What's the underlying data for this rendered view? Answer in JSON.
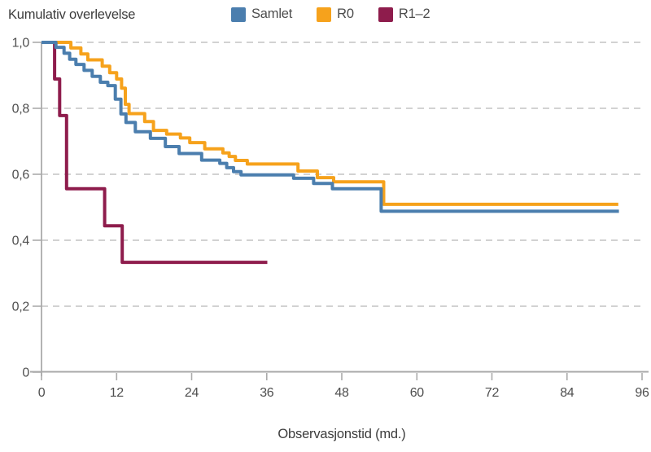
{
  "header": {
    "title": "Kumulativ overlevelse"
  },
  "legend": {
    "items": [
      {
        "label": "Samlet",
        "color": "#4B7EAE"
      },
      {
        "label": "R0",
        "color": "#F6A21C"
      },
      {
        "label": "R1–2",
        "color": "#8E1C4C"
      }
    ]
  },
  "axes": {
    "x": {
      "label": "Observasjonstid (md.)",
      "tick_labels": [
        "0",
        "12",
        "24",
        "36",
        "48",
        "60",
        "72",
        "84",
        "96"
      ],
      "tick_values": [
        0,
        12,
        24,
        36,
        48,
        60,
        72,
        84,
        96
      ],
      "range": [
        0,
        96
      ]
    },
    "y": {
      "tick_labels": [
        "1,0",
        "0,8",
        "0,6",
        "0,4",
        "0,2",
        "0"
      ],
      "tick_values": [
        1.0,
        0.8,
        0.6,
        0.4,
        0.2,
        0
      ],
      "grid_values": [
        1.0,
        0.8,
        0.6,
        0.4,
        0.2
      ],
      "range": [
        0,
        1.0
      ]
    }
  },
  "chart_data": {
    "type": "line",
    "subtype": "kaplan-meier-step",
    "title": "Kumulativ overlevelse",
    "xlabel": "Observasjonstid (md.)",
    "ylabel": "",
    "x_range": [
      0,
      96
    ],
    "y_range": [
      0,
      1.0
    ],
    "grid": "horizontal-dashed",
    "legend_position": "top",
    "series": [
      {
        "name": "Samlet",
        "color": "#4B7EAE",
        "end_x": 92.3,
        "steps": [
          [
            0,
            1.0
          ],
          [
            2.3,
            0.985
          ],
          [
            3.6,
            0.967
          ],
          [
            4.5,
            0.949
          ],
          [
            5.5,
            0.933
          ],
          [
            6.8,
            0.915
          ],
          [
            8.1,
            0.897
          ],
          [
            9.4,
            0.879
          ],
          [
            10.6,
            0.869
          ],
          [
            11.8,
            0.828
          ],
          [
            12.7,
            0.783
          ],
          [
            13.5,
            0.757
          ],
          [
            15,
            0.729
          ],
          [
            17.4,
            0.709
          ],
          [
            19.8,
            0.684
          ],
          [
            22,
            0.663
          ],
          [
            25.6,
            0.643
          ],
          [
            28.5,
            0.633
          ],
          [
            29.6,
            0.62
          ],
          [
            30.7,
            0.608
          ],
          [
            31.9,
            0.598
          ],
          [
            40.3,
            0.588
          ],
          [
            43.5,
            0.572
          ],
          [
            46.5,
            0.556
          ],
          [
            54.3,
            0.488
          ]
        ]
      },
      {
        "name": "R0",
        "color": "#F6A21C",
        "end_x": 92.2,
        "steps": [
          [
            0,
            1.0
          ],
          [
            4.7,
            0.983
          ],
          [
            6.3,
            0.965
          ],
          [
            7.4,
            0.947
          ],
          [
            9.7,
            0.928
          ],
          [
            10.9,
            0.908
          ],
          [
            12,
            0.889
          ],
          [
            12.8,
            0.861
          ],
          [
            13.4,
            0.812
          ],
          [
            14,
            0.784
          ],
          [
            16.5,
            0.76
          ],
          [
            17.9,
            0.733
          ],
          [
            20,
            0.722
          ],
          [
            22.2,
            0.71
          ],
          [
            23.7,
            0.696
          ],
          [
            26.1,
            0.677
          ],
          [
            29,
            0.665
          ],
          [
            30,
            0.654
          ],
          [
            31,
            0.642
          ],
          [
            32.9,
            0.631
          ],
          [
            41,
            0.61
          ],
          [
            44.1,
            0.59
          ],
          [
            46.7,
            0.577
          ],
          [
            54.7,
            0.509
          ]
        ]
      },
      {
        "name": "R1–2",
        "color": "#8E1C4C",
        "end_x": 36.1,
        "steps": [
          [
            0,
            1.0
          ],
          [
            2.1,
            0.889
          ],
          [
            2.9,
            0.778
          ],
          [
            4,
            0.556
          ],
          [
            10.1,
            0.444
          ],
          [
            12.9,
            0.333
          ]
        ]
      }
    ]
  },
  "colors": {
    "grid": "#D2D2D2",
    "axis": "#A9A9A9",
    "tick": "#ABABAB",
    "background": "#FFFFFF"
  }
}
